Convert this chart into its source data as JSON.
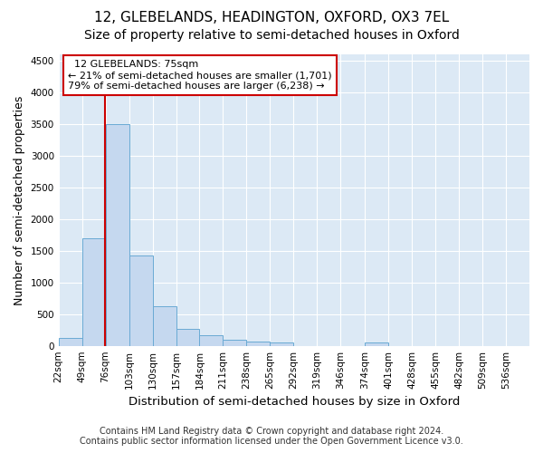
{
  "title": "12, GLEBELANDS, HEADINGTON, OXFORD, OX3 7EL",
  "subtitle": "Size of property relative to semi-detached houses in Oxford",
  "xlabel": "Distribution of semi-detached houses by size in Oxford",
  "ylabel": "Number of semi-detached properties",
  "footer_line1": "Contains HM Land Registry data © Crown copyright and database right 2024.",
  "footer_line2": "Contains public sector information licensed under the Open Government Licence v3.0.",
  "property_size": 75,
  "annotation_line1": "12 GLEBELANDS: 75sqm",
  "annotation_line2": "← 21% of semi-detached houses are smaller (1,701)",
  "annotation_line3": "79% of semi-detached houses are larger (6,238) →",
  "bin_edges": [
    22,
    49,
    76,
    103,
    130,
    157,
    184,
    211,
    238,
    265,
    292,
    319,
    346,
    374,
    401,
    428,
    455,
    482,
    509,
    536,
    563
  ],
  "bar_heights": [
    130,
    1700,
    3500,
    1420,
    620,
    270,
    160,
    100,
    65,
    50,
    0,
    0,
    0,
    50,
    0,
    0,
    0,
    0,
    0,
    0
  ],
  "bar_color": "#c5d8ef",
  "bar_edge_color": "#6aaad4",
  "red_line_color": "#cc0000",
  "annotation_box_color": "#cc0000",
  "ylim": [
    0,
    4600
  ],
  "yticks": [
    0,
    500,
    1000,
    1500,
    2000,
    2500,
    3000,
    3500,
    4000,
    4500
  ],
  "background_color": "#dce9f5",
  "fig_bg_color": "#ffffff",
  "title_fontsize": 11,
  "subtitle_fontsize": 10,
  "axis_label_fontsize": 9,
  "tick_fontsize": 7.5,
  "annotation_fontsize": 8,
  "footer_fontsize": 7
}
